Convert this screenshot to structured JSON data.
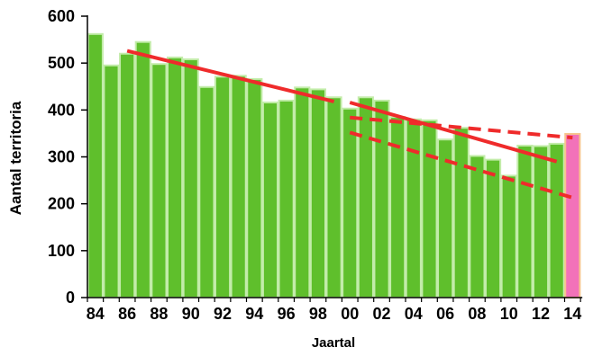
{
  "chart_data": {
    "type": "bar",
    "title": "",
    "xlabel": "Jaartal",
    "ylabel": "Aantal territoria",
    "ylim": [
      0,
      600
    ],
    "yticks": [
      0,
      100,
      200,
      300,
      400,
      500,
      600
    ],
    "xtick_labels": [
      "84",
      "86",
      "88",
      "90",
      "92",
      "94",
      "96",
      "98",
      "00",
      "02",
      "04",
      "06",
      "08",
      "10",
      "12",
      "14"
    ],
    "categories": [
      "1984",
      "1985",
      "1986",
      "1987",
      "1988",
      "1989",
      "1990",
      "1991",
      "1992",
      "1993",
      "1994",
      "1995",
      "1996",
      "1997",
      "1998",
      "1999",
      "2000",
      "2001",
      "2002",
      "2003",
      "2004",
      "2005",
      "2006",
      "2007",
      "2008",
      "2009",
      "2010",
      "2011",
      "2012",
      "2013",
      "2014"
    ],
    "values": [
      562,
      495,
      520,
      545,
      498,
      512,
      508,
      449,
      471,
      473,
      466,
      416,
      420,
      448,
      444,
      427,
      403,
      427,
      420,
      385,
      380,
      378,
      337,
      362,
      302,
      294,
      260,
      324,
      323,
      328,
      349
    ],
    "bar_color": "#5fbf2c",
    "bar_border_color": "#c3ecaa",
    "highlight_index": 30,
    "highlight_color": "#f272b9",
    "highlight_border_color": "#f7c48d",
    "trend_color": "#ef2b2b",
    "trend_lines": [
      {
        "style": "solid",
        "x": [
          "1986",
          "1999"
        ],
        "y": [
          526,
          418
        ]
      },
      {
        "style": "solid",
        "x": [
          "2000",
          "2013"
        ],
        "y": [
          416,
          290
        ]
      },
      {
        "style": "dashed",
        "x": [
          "2000",
          "2014"
        ],
        "y": [
          384,
          341
        ]
      },
      {
        "style": "dashed",
        "x": [
          "2000",
          "2014"
        ],
        "y": [
          352,
          213
        ]
      }
    ],
    "grid": false,
    "legend": "none"
  }
}
